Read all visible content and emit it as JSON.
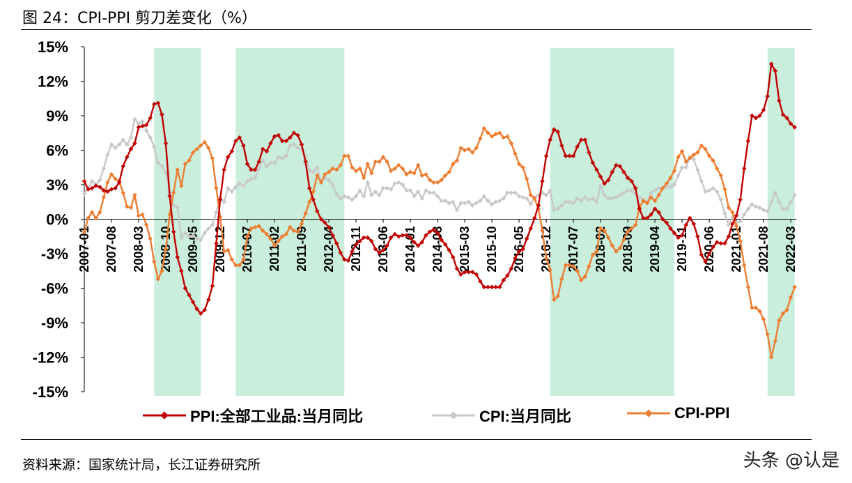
{
  "title": "图 24：CPI-PPI 剪刀差变化（%）",
  "source": "资料来源：国家统计局，长江证券研究所",
  "watermark": "头条 @认是",
  "chart_data": {
    "type": "line",
    "title": "CPI-PPI 剪刀差变化（%）",
    "x_start": "2007-01",
    "x_end": "2022-04",
    "x_frequency": "monthly",
    "x_tick_labels": [
      "2007-01",
      "2007-08",
      "2008-03",
      "2008-10",
      "2009-05",
      "2009-12",
      "2010-07",
      "2011-02",
      "2011-09",
      "2012-04",
      "2012-11",
      "2013-06",
      "2014-01",
      "2014-08",
      "2015-03",
      "2015-10",
      "2016-05",
      "2016-12",
      "2017-07",
      "2018-02",
      "2018-09",
      "2019-04",
      "2019-11",
      "2020-06",
      "2021-01",
      "2021-08",
      "2022-03"
    ],
    "ylim": [
      -15,
      15
    ],
    "y_ticks": [
      15,
      12,
      9,
      6,
      3,
      0,
      -3,
      -6,
      -9,
      -12,
      -15
    ],
    "y_tick_labels": [
      "15%",
      "12%",
      "9%",
      "6%",
      "3%",
      "0%",
      "-3%",
      "-6%",
      "-9%",
      "-12%",
      "-15%"
    ],
    "grid": false,
    "legend_position": "bottom",
    "shaded_periods": [
      [
        "2008-07",
        "2009-07"
      ],
      [
        "2010-04",
        "2012-08"
      ],
      [
        "2017-01",
        "2019-09"
      ],
      [
        "2021-09",
        "2022-04"
      ]
    ],
    "shade_color": "#C9EEDC",
    "series": [
      {
        "name": "PPI:全部工业品:当月同比",
        "color": "#C00000",
        "values": [
          3.3,
          2.6,
          2.7,
          2.9,
          2.8,
          2.5,
          2.4,
          2.6,
          2.7,
          3.2,
          4.6,
          5.4,
          6.1,
          6.6,
          8.0,
          8.1,
          8.2,
          8.8,
          10.0,
          10.1,
          9.1,
          6.6,
          2.0,
          -1.1,
          -3.3,
          -4.5,
          -6.0,
          -6.6,
          -7.2,
          -7.8,
          -8.2,
          -7.9,
          -7.0,
          -5.8,
          -2.1,
          1.7,
          4.3,
          5.4,
          5.9,
          6.8,
          7.1,
          6.4,
          4.8,
          4.3,
          4.3,
          5.0,
          6.1,
          5.9,
          6.6,
          7.2,
          7.3,
          6.8,
          6.8,
          7.1,
          7.5,
          7.3,
          6.5,
          5.0,
          2.7,
          1.7,
          0.7,
          0.0,
          -0.3,
          -0.7,
          -1.4,
          -2.1,
          -2.9,
          -3.5,
          -3.6,
          -2.8,
          -2.2,
          -1.9,
          -1.6,
          -1.6,
          -1.9,
          -2.6,
          -2.9,
          -2.7,
          -2.3,
          -1.6,
          -1.3,
          -1.5,
          -1.4,
          -1.4,
          -1.6,
          -2.0,
          -2.3,
          -2.0,
          -1.4,
          -1.1,
          -0.9,
          -1.2,
          -1.8,
          -2.2,
          -2.7,
          -3.3,
          -4.3,
          -4.8,
          -4.6,
          -4.6,
          -4.6,
          -4.8,
          -5.4,
          -5.9,
          -5.9,
          -5.9,
          -5.9,
          -5.9,
          -5.3,
          -4.9,
          -4.3,
          -3.4,
          -2.8,
          -2.6,
          -1.7,
          -0.8,
          0.1,
          1.2,
          3.3,
          5.5,
          6.9,
          7.8,
          7.6,
          6.4,
          5.5,
          5.5,
          5.5,
          6.3,
          6.9,
          6.9,
          5.8,
          4.9,
          4.3,
          3.7,
          3.1,
          3.4,
          4.1,
          4.7,
          4.6,
          4.1,
          3.6,
          3.3,
          2.7,
          0.9,
          0.1,
          0.1,
          0.4,
          0.9,
          0.6,
          0.0,
          -0.3,
          -0.8,
          -1.2,
          -1.6,
          -1.4,
          -0.5,
          0.1,
          -0.4,
          -1.5,
          -3.1,
          -3.7,
          -3.0,
          -2.4,
          -2.0,
          -2.1,
          -2.1,
          -1.5,
          -0.4,
          0.3,
          1.7,
          4.4,
          6.8,
          9.0,
          8.8,
          9.0,
          9.5,
          10.7,
          13.5,
          12.9,
          10.3,
          9.1,
          8.8,
          8.3,
          8.0
        ]
      },
      {
        "name": "CPI:当月同比",
        "color": "#C8C8C8",
        "values": [
          2.2,
          2.7,
          3.3,
          3.0,
          3.4,
          4.4,
          5.6,
          6.5,
          6.2,
          6.5,
          6.9,
          6.5,
          7.1,
          8.7,
          8.3,
          8.5,
          7.7,
          7.1,
          6.3,
          4.9,
          4.6,
          4.0,
          2.4,
          1.2,
          1.0,
          -1.6,
          -1.2,
          -1.5,
          -1.4,
          -1.7,
          -1.8,
          -1.2,
          -0.8,
          -0.5,
          0.6,
          1.9,
          1.5,
          2.7,
          2.4,
          2.8,
          3.1,
          2.9,
          3.3,
          3.5,
          3.6,
          4.4,
          5.1,
          4.6,
          4.9,
          4.9,
          5.4,
          5.3,
          5.5,
          6.4,
          6.5,
          6.2,
          6.1,
          5.5,
          4.2,
          4.1,
          4.5,
          3.2,
          3.6,
          3.4,
          3.0,
          2.2,
          1.8,
          2.0,
          1.9,
          1.7,
          2.0,
          2.5,
          2.0,
          3.2,
          2.1,
          2.4,
          2.1,
          2.7,
          2.7,
          2.6,
          3.1,
          3.2,
          3.0,
          2.5,
          2.5,
          2.0,
          2.4,
          1.8,
          2.5,
          2.3,
          2.3,
          2.0,
          1.6,
          1.6,
          1.4,
          1.5,
          0.8,
          1.4,
          1.4,
          1.5,
          1.2,
          1.4,
          1.6,
          2.0,
          1.6,
          1.3,
          1.5,
          1.6,
          1.8,
          2.3,
          2.3,
          2.3,
          2.0,
          1.9,
          1.8,
          1.3,
          1.9,
          2.1,
          2.3,
          2.1,
          2.5,
          0.8,
          0.9,
          1.2,
          1.5,
          1.5,
          1.4,
          1.8,
          1.6,
          1.9,
          1.7,
          1.8,
          1.5,
          2.9,
          2.1,
          1.8,
          1.8,
          1.9,
          2.1,
          2.3,
          2.5,
          2.5,
          2.2,
          1.9,
          1.7,
          1.5,
          2.3,
          2.5,
          2.7,
          2.7,
          2.8,
          2.8,
          3.0,
          3.8,
          4.5,
          4.5,
          5.4,
          5.2,
          4.3,
          3.3,
          2.4,
          2.5,
          2.7,
          2.4,
          1.7,
          0.5,
          -0.5,
          0.2,
          -0.3,
          -0.2,
          0.4,
          0.9,
          1.3,
          1.1,
          1.0,
          0.8,
          0.7,
          1.5,
          2.3,
          1.5,
          0.9,
          0.9,
          1.5,
          2.1
        ]
      },
      {
        "name": "CPI-PPI",
        "color": "#ED7D31",
        "values": [
          -1.1,
          0.1,
          0.6,
          0.1,
          0.6,
          1.9,
          3.2,
          3.9,
          3.5,
          3.3,
          2.3,
          1.1,
          1.0,
          2.1,
          0.3,
          0.4,
          -0.5,
          -1.7,
          -3.7,
          -5.2,
          -4.5,
          -2.6,
          0.4,
          2.3,
          4.3,
          2.9,
          4.8,
          5.1,
          5.8,
          6.1,
          6.4,
          6.7,
          6.2,
          5.3,
          2.7,
          0.2,
          -2.8,
          -2.7,
          -3.5,
          -4.0,
          -4.0,
          -3.5,
          -1.5,
          -0.8,
          -0.7,
          -0.6,
          -1.0,
          -1.3,
          -1.7,
          -2.3,
          -1.9,
          -1.5,
          -1.3,
          -0.7,
          -1.0,
          -1.1,
          -0.4,
          0.5,
          1.5,
          2.4,
          3.8,
          3.2,
          3.9,
          4.1,
          4.4,
          4.3,
          4.7,
          5.5,
          5.5,
          4.5,
          4.2,
          4.4,
          3.6,
          4.8,
          4.0,
          5.0,
          5.0,
          5.4,
          5.0,
          4.2,
          4.4,
          4.7,
          4.4,
          3.9,
          4.1,
          4.0,
          4.7,
          3.8,
          3.9,
          3.4,
          3.2,
          3.2,
          3.4,
          3.8,
          4.1,
          4.8,
          5.1,
          6.2,
          6.0,
          6.1,
          5.8,
          6.2,
          7.0,
          7.9,
          7.5,
          7.2,
          7.4,
          7.5,
          7.1,
          7.2,
          6.6,
          5.7,
          4.8,
          4.5,
          3.5,
          2.1,
          1.8,
          0.9,
          -1.0,
          -3.4,
          -4.4,
          -7.0,
          -6.7,
          -5.2,
          -4.0,
          -4.0,
          -4.1,
          -4.5,
          -5.3,
          -5.0,
          -4.1,
          -3.1,
          -2.8,
          -0.8,
          -1.0,
          -1.6,
          -2.3,
          -2.8,
          -2.5,
          -1.8,
          -1.1,
          -0.8,
          -0.5,
          1.0,
          1.6,
          1.4,
          1.9,
          1.6,
          2.1,
          2.7,
          3.1,
          3.6,
          4.2,
          5.4,
          5.9,
          5.0,
          5.3,
          5.6,
          5.8,
          6.4,
          6.1,
          5.5,
          5.1,
          4.4,
          3.8,
          2.6,
          1.0,
          0.6,
          -0.6,
          -1.9,
          -4.0,
          -5.9,
          -7.7,
          -7.7,
          -8.0,
          -8.7,
          -10.0,
          -12.0,
          -10.6,
          -8.8,
          -8.2,
          -7.9,
          -6.8,
          -5.9
        ]
      }
    ]
  }
}
